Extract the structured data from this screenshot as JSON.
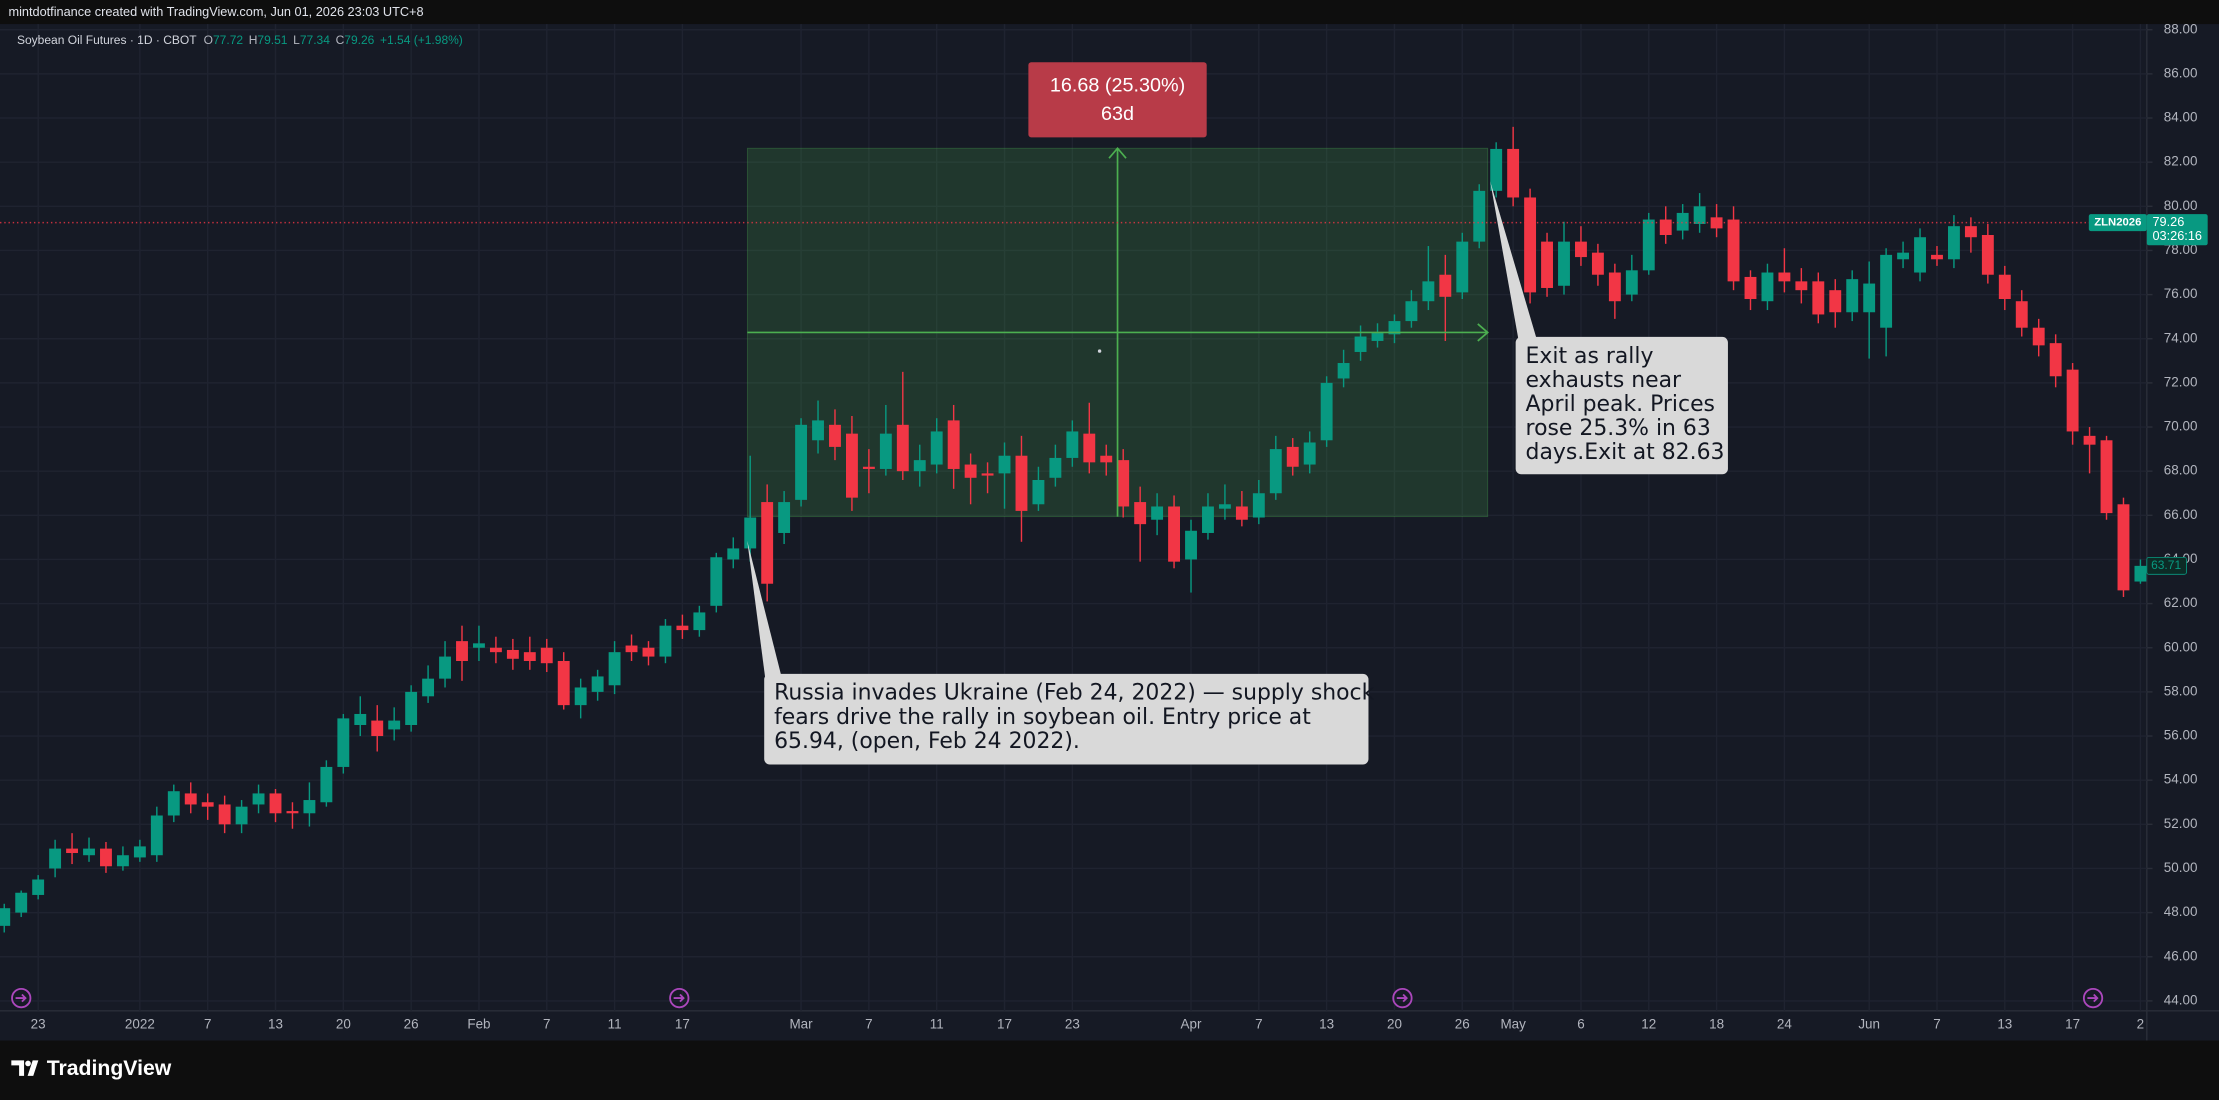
{
  "header": {
    "text": "mintdotfinance created with TradingView.com, Jun 01, 2026 23:03 UTC+8"
  },
  "legend": {
    "symbol": "Soybean Oil Futures · 1D · CBOT",
    "items": [
      {
        "label": "O",
        "value": 77.72
      },
      {
        "label": "H",
        "value": 79.51
      },
      {
        "label": "L",
        "value": 77.34
      },
      {
        "label": "C",
        "value": 79.26
      }
    ],
    "change": "+1.54 (+1.98%)"
  },
  "price_tag": {
    "symbol": "ZLN2026",
    "countdown": "03:26:16"
  },
  "measure": {
    "from": 65.94,
    "to": 82.63,
    "label": "16.68 (25.30%)",
    "duration": "63d",
    "color": "#4caf50",
    "label_color": "#b83b48"
  },
  "annotations": [
    {
      "lines": [
        "Russia invades Ukraine (Feb 24, 2022) — supply shock",
        "fears drive the rally in soybean oil. Entry price at",
        "65.94, (open, Feb 24 2022)."
      ]
    },
    {
      "lines": [
        "Exit as rally",
        "exhausts near",
        "April peak. Prices",
        "rose 25.3% in 63",
        "days.Exit at 82.63"
      ]
    }
  ],
  "footer": {
    "brand": "TradingView"
  },
  "chart_data": {
    "type": "candlestick",
    "up_color": "#089981",
    "down_color": "#f23645",
    "grid": true,
    "ylim": [
      44,
      88
    ],
    "yticks": [
      {
        "value": 44,
        "label": "44.00"
      },
      {
        "value": 46,
        "label": "46.00"
      },
      {
        "value": 48,
        "label": "48.00"
      },
      {
        "value": 50,
        "label": "50.00"
      },
      {
        "value": 52,
        "label": "52.00"
      },
      {
        "value": 54,
        "label": "54.00"
      },
      {
        "value": 56,
        "label": "56.00"
      },
      {
        "value": 58,
        "label": "58.00"
      },
      {
        "value": 60,
        "label": "60.00"
      },
      {
        "value": 62,
        "label": "62.00"
      },
      {
        "value": 64,
        "label": "64.00"
      },
      {
        "value": 66,
        "label": "66.00"
      },
      {
        "value": 68,
        "label": "68.00"
      },
      {
        "value": 70,
        "label": "70.00"
      },
      {
        "value": 72,
        "label": "72.00"
      },
      {
        "value": 74,
        "label": "74.00"
      },
      {
        "value": 76,
        "label": "76.00"
      },
      {
        "value": 78,
        "label": "78.00"
      },
      {
        "value": 80,
        "label": "80.00"
      },
      {
        "value": 82,
        "label": "82.00"
      },
      {
        "value": 84,
        "label": "84.00"
      },
      {
        "value": 86,
        "label": "86.00"
      },
      {
        "value": 88,
        "label": "88.00"
      }
    ],
    "categories": [
      null,
      null,
      "23",
      null,
      null,
      null,
      null,
      null,
      "2022",
      null,
      null,
      null,
      "7",
      null,
      null,
      null,
      "13",
      null,
      null,
      null,
      "20",
      null,
      null,
      null,
      "26",
      null,
      null,
      null,
      "Feb",
      null,
      null,
      null,
      "7",
      null,
      null,
      null,
      "11",
      null,
      null,
      null,
      "17",
      null,
      null,
      null,
      null,
      null,
      null,
      "Mar",
      null,
      null,
      null,
      "7",
      null,
      null,
      null,
      "11",
      null,
      null,
      null,
      "17",
      null,
      null,
      null,
      "23",
      null,
      null,
      null,
      null,
      null,
      null,
      "Apr",
      null,
      null,
      null,
      "7",
      null,
      null,
      null,
      "13",
      null,
      null,
      null,
      "20",
      null,
      null,
      null,
      "26",
      null,
      null,
      "May",
      null,
      null,
      null,
      "6",
      null,
      null,
      null,
      "12",
      null,
      null,
      null,
      "18",
      null,
      null,
      null,
      "24",
      null,
      null,
      null,
      null,
      "Jun",
      null,
      null,
      null,
      "7",
      null,
      null,
      null,
      "13",
      null,
      null,
      null,
      "17",
      null,
      null,
      null,
      "2"
    ],
    "open": [
      47.4,
      48.0,
      48.8,
      50.0,
      50.9,
      50.6,
      50.9,
      50.1,
      50.5,
      50.6,
      52.4,
      53.4,
      53.0,
      52.9,
      52.0,
      52.9,
      53.4,
      52.6,
      52.5,
      53.0,
      54.6,
      56.5,
      56.7,
      56.3,
      56.5,
      57.8,
      58.6,
      60.3,
      60.0,
      60.0,
      59.9,
      59.8,
      60.0,
      59.4,
      57.4,
      58.0,
      58.3,
      60.1,
      60.0,
      59.6,
      61.0,
      60.8,
      61.9,
      64.0,
      64.5,
      66.6,
      65.2,
      66.7,
      69.4,
      70.1,
      69.7,
      68.2,
      68.1,
      70.1,
      68.0,
      68.3,
      70.3,
      68.3,
      67.9,
      67.9,
      68.7,
      66.5,
      67.7,
      68.6,
      69.7,
      68.7,
      68.5,
      66.6,
      65.8,
      66.4,
      64.0,
      65.2,
      66.3,
      66.4,
      65.9,
      67.0,
      69.1,
      68.3,
      69.4,
      72.2,
      73.4,
      73.9,
      74.2,
      74.8,
      75.7,
      76.9,
      76.1,
      78.4,
      80.7,
      82.6,
      80.4,
      78.4,
      76.4,
      78.4,
      77.9,
      77.0,
      76.0,
      77.1,
      79.4,
      78.9,
      79.2,
      79.5,
      79.4,
      76.8,
      75.7,
      77.0,
      76.6,
      76.6,
      76.2,
      75.2,
      75.2,
      74.5,
      77.6,
      77.0,
      77.8,
      77.6,
      79.1,
      78.7,
      76.9,
      75.7,
      74.5,
      73.8,
      72.6,
      69.6,
      69.4,
      66.5,
      63.0
    ],
    "high": [
      48.4,
      49.0,
      49.7,
      51.3,
      51.6,
      51.4,
      51.2,
      51.0,
      51.3,
      52.8,
      53.8,
      53.9,
      53.4,
      53.3,
      53.1,
      53.8,
      53.6,
      53.0,
      53.9,
      54.9,
      57.0,
      57.8,
      57.4,
      57.3,
      58.3,
      59.2,
      60.3,
      61.0,
      61.0,
      60.5,
      60.4,
      60.5,
      60.4,
      59.8,
      58.6,
      59.0,
      60.3,
      60.6,
      60.3,
      61.3,
      61.5,
      61.9,
      64.3,
      65.0,
      68.7,
      67.4,
      67.1,
      70.4,
      71.2,
      70.8,
      70.5,
      69.0,
      71.0,
      72.5,
      69.2,
      70.4,
      71.0,
      68.8,
      68.4,
      69.3,
      69.6,
      68.2,
      69.2,
      70.3,
      71.1,
      69.2,
      69.0,
      67.3,
      67.0,
      66.9,
      65.8,
      67.0,
      67.4,
      67.1,
      67.6,
      69.6,
      69.5,
      69.8,
      72.3,
      73.5,
      74.6,
      74.7,
      75.1,
      76.2,
      78.2,
      77.8,
      78.8,
      81.0,
      82.9,
      83.6,
      80.8,
      78.8,
      79.3,
      79.1,
      78.3,
      77.4,
      77.8,
      79.7,
      80.0,
      80.1,
      80.6,
      80.1,
      80.0,
      77.1,
      77.4,
      78.1,
      77.2,
      77.0,
      76.7,
      77.1,
      77.5,
      78.1,
      78.4,
      79.0,
      78.2,
      79.6,
      79.5,
      79.2,
      77.3,
      76.2,
      74.9,
      74.2,
      72.9,
      70.0,
      69.6,
      66.8,
      64.0
    ],
    "low": [
      47.1,
      47.8,
      48.6,
      49.6,
      50.2,
      50.3,
      49.8,
      49.9,
      50.3,
      50.3,
      52.1,
      52.5,
      52.2,
      51.6,
      51.6,
      52.5,
      52.1,
      51.8,
      51.9,
      52.8,
      54.3,
      56.0,
      55.3,
      55.8,
      56.2,
      57.5,
      58.2,
      58.5,
      59.4,
      59.3,
      59.0,
      59.0,
      58.9,
      57.2,
      56.8,
      57.6,
      57.9,
      59.4,
      59.2,
      59.3,
      60.4,
      60.5,
      61.6,
      63.6,
      63.9,
      62.1,
      64.7,
      66.4,
      68.8,
      68.5,
      66.2,
      67.0,
      67.8,
      67.6,
      67.3,
      67.9,
      67.2,
      66.5,
      67.0,
      66.3,
      64.8,
      66.2,
      67.3,
      68.2,
      67.9,
      67.8,
      65.9,
      63.9,
      65.1,
      63.6,
      62.5,
      64.9,
      65.8,
      65.5,
      65.6,
      66.7,
      67.8,
      67.9,
      69.1,
      71.8,
      73.0,
      73.6,
      73.8,
      74.5,
      75.3,
      73.9,
      75.8,
      78.1,
      80.4,
      80.0,
      75.6,
      75.9,
      76.0,
      77.3,
      76.4,
      74.9,
      75.7,
      76.9,
      78.3,
      78.5,
      78.8,
      78.6,
      76.2,
      75.3,
      75.3,
      76.1,
      75.6,
      74.7,
      74.5,
      74.8,
      73.1,
      73.2,
      77.2,
      76.6,
      77.3,
      77.2,
      77.9,
      76.5,
      75.3,
      74.1,
      73.2,
      71.8,
      69.2,
      67.9,
      65.8,
      62.3,
      62.9
    ],
    "close": [
      48.2,
      48.9,
      49.5,
      50.9,
      50.7,
      50.9,
      50.1,
      50.6,
      51.0,
      52.4,
      53.5,
      52.9,
      52.8,
      52.0,
      52.8,
      53.4,
      52.5,
      52.5,
      53.1,
      54.6,
      56.8,
      57.0,
      56.0,
      56.7,
      58.0,
      58.6,
      59.6,
      59.4,
      60.2,
      59.8,
      59.5,
      59.4,
      59.3,
      57.4,
      58.2,
      58.7,
      59.8,
      59.8,
      59.6,
      61.0,
      60.8,
      61.6,
      64.1,
      64.5,
      65.9,
      62.9,
      66.6,
      70.1,
      70.3,
      69.1,
      66.8,
      68.1,
      69.7,
      68.0,
      68.5,
      69.8,
      68.1,
      67.7,
      67.8,
      68.7,
      66.2,
      67.6,
      68.6,
      69.8,
      68.4,
      68.4,
      66.4,
      65.6,
      66.4,
      63.9,
      65.3,
      66.4,
      66.5,
      65.8,
      67.0,
      69.0,
      68.2,
      69.3,
      72.0,
      72.9,
      74.1,
      74.3,
      74.8,
      75.7,
      76.6,
      75.9,
      78.4,
      80.7,
      82.6,
      80.4,
      76.1,
      76.3,
      78.4,
      77.7,
      76.9,
      75.7,
      77.1,
      79.4,
      78.7,
      79.7,
      80.0,
      79.0,
      76.6,
      75.8,
      77.0,
      76.6,
      76.2,
      75.1,
      75.2,
      76.7,
      76.5,
      77.8,
      77.9,
      78.6,
      77.6,
      79.1,
      78.6,
      76.9,
      75.8,
      74.5,
      73.7,
      72.3,
      69.8,
      69.2,
      66.1,
      62.6,
      63.71
    ]
  }
}
